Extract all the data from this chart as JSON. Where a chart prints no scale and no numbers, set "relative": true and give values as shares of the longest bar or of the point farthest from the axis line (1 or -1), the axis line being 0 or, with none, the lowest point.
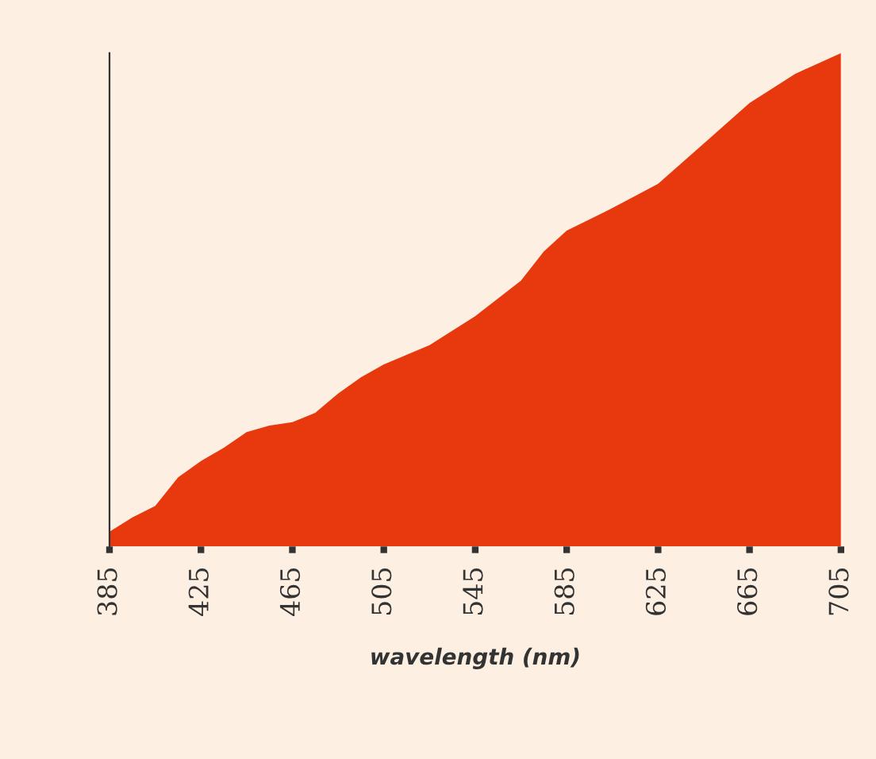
{
  "chart_data": {
    "type": "area",
    "xlabel": "wavelength (nm)",
    "relative": true,
    "xlim": [
      385,
      705
    ],
    "xticks": [
      385,
      425,
      465,
      505,
      545,
      585,
      625,
      665,
      705
    ],
    "grid": false,
    "legend": false,
    "x": [
      385,
      395,
      405,
      415,
      425,
      435,
      445,
      455,
      465,
      475,
      485,
      495,
      505,
      525,
      545,
      565,
      575,
      585,
      605,
      625,
      645,
      665,
      685,
      705
    ],
    "series": [
      {
        "color": "#e8380d",
        "values": [
          0.03,
          0.059,
          0.082,
          0.14,
          0.173,
          0.2,
          0.232,
          0.245,
          0.252,
          0.271,
          0.31,
          0.343,
          0.369,
          0.408,
          0.467,
          0.539,
          0.598,
          0.64,
          0.686,
          0.735,
          0.817,
          0.899,
          0.958,
          1.0
        ]
      }
    ]
  }
}
